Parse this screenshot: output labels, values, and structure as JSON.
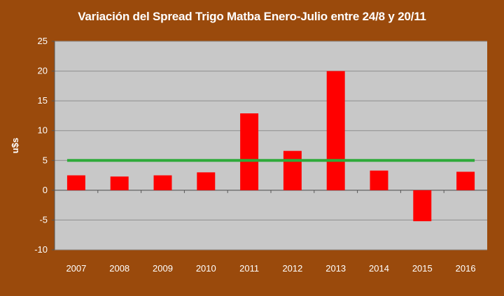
{
  "chart_data": {
    "type": "bar",
    "title": "Variación del Spread Trigo Matba Enero-Julio entre  24/8 y 20/11",
    "ylabel": "u$s",
    "xlabel": "",
    "categories": [
      "2007",
      "2008",
      "2009",
      "2010",
      "2011",
      "2012",
      "2013",
      "2014",
      "2015",
      "2016"
    ],
    "values": [
      2.5,
      2.3,
      2.5,
      3.0,
      12.9,
      6.6,
      20.0,
      3.3,
      -5.2,
      3.1
    ],
    "ylim": [
      -10,
      25
    ],
    "yticks": [
      -10,
      -5,
      0,
      5,
      10,
      15,
      20,
      25
    ],
    "reference_line": {
      "y": 5,
      "color": "#2eaa3a"
    },
    "bar_color": "#ff0000",
    "plot_background": "#c8c8c8",
    "page_background": "#9a4a0c",
    "grid": true,
    "legend": "none"
  }
}
